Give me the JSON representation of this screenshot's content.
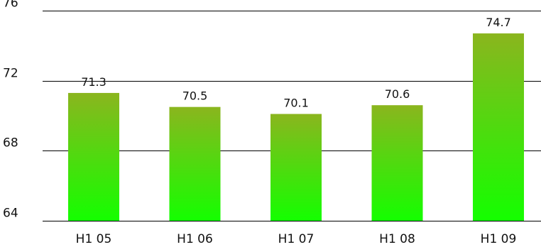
{
  "chart_data": {
    "type": "bar",
    "categories": [
      "H1 05",
      "H1 06",
      "H1 07",
      "H1 08",
      "H1 09"
    ],
    "values": [
      71.3,
      70.5,
      70.1,
      70.6,
      74.7
    ],
    "value_labels": [
      "71.3",
      "70.5",
      "70.1",
      "70.6",
      "74.7"
    ],
    "title": "",
    "xlabel": "",
    "ylabel": "",
    "ylim": [
      64,
      76
    ],
    "yticks": [
      64,
      68,
      72,
      76
    ],
    "ytick_labels": [
      "64",
      "68",
      "72",
      "76"
    ],
    "grid": "horizontal",
    "legend": "none",
    "colors": {
      "bar_top": "#8bb51e",
      "bar_bottom": "#14ff00",
      "grid": "#000000",
      "text": "#111111"
    }
  }
}
